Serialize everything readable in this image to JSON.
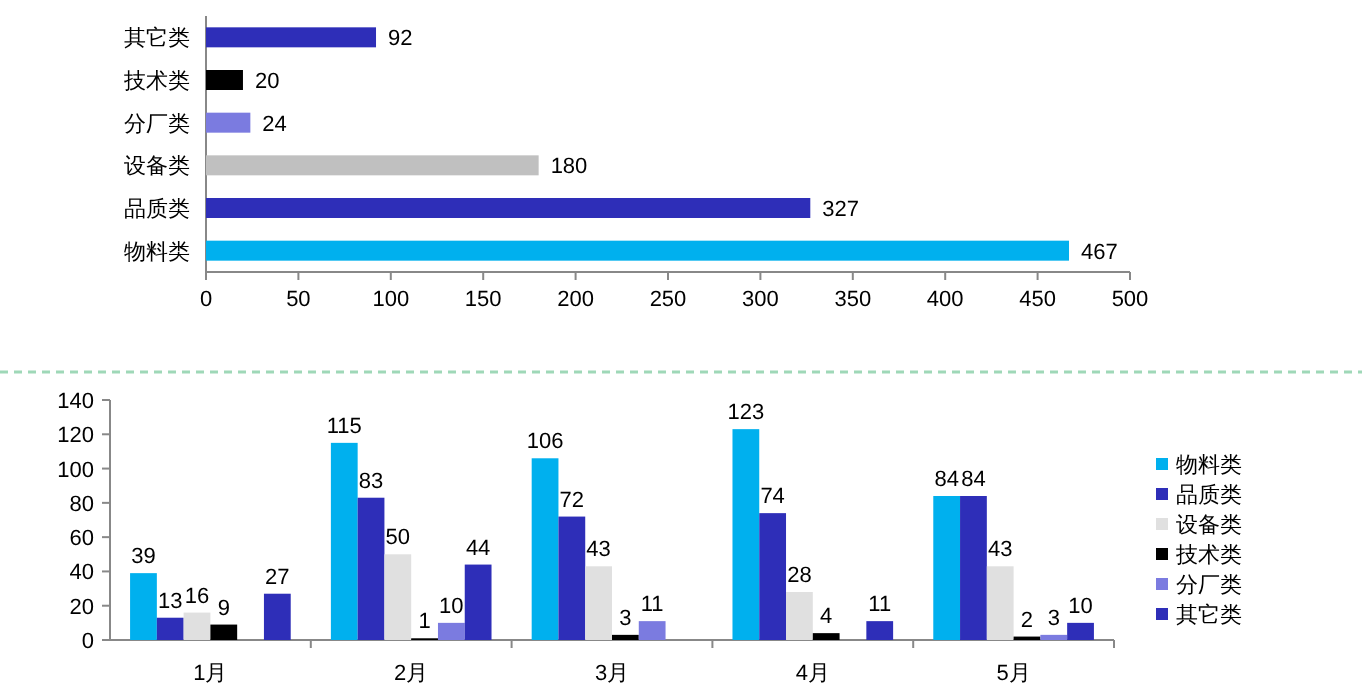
{
  "chart_data": [
    {
      "type": "bar",
      "orientation": "horizontal",
      "categories": [
        "其它类",
        "技术类",
        "分厂类",
        "设备类",
        "品质类",
        "物料类"
      ],
      "values": [
        92,
        20,
        24,
        180,
        327,
        467
      ],
      "colors": [
        "#2e2eb8",
        "#000000",
        "#7b7be0",
        "#c0c0c0",
        "#2e2eb8",
        "#00b0ee"
      ],
      "xlim": [
        0,
        500
      ],
      "xticks": [
        0,
        50,
        100,
        150,
        200,
        250,
        300,
        350,
        400,
        450,
        500
      ],
      "data_labels": true,
      "grid": false
    },
    {
      "type": "bar",
      "categories": [
        "1月",
        "2月",
        "3月",
        "4月",
        "5月"
      ],
      "series": [
        {
          "name": "物料类",
          "color": "#00b0ee",
          "values": [
            39,
            115,
            106,
            123,
            84
          ]
        },
        {
          "name": "品质类",
          "color": "#2e2eb8",
          "values": [
            13,
            83,
            72,
            74,
            84
          ]
        },
        {
          "name": "设备类",
          "color": "#e0e0e0",
          "values": [
            16,
            50,
            43,
            28,
            43
          ]
        },
        {
          "name": "技术类",
          "color": "#000000",
          "values": [
            9,
            1,
            3,
            4,
            2
          ]
        },
        {
          "name": "分厂类",
          "color": "#7b7be0",
          "values": [
            null,
            10,
            11,
            null,
            3
          ]
        },
        {
          "name": "其它类",
          "color": "#2e2eb8",
          "values": [
            27,
            44,
            null,
            11,
            10
          ]
        }
      ],
      "ylim": [
        0,
        140
      ],
      "yticks": [
        0,
        20,
        40,
        60,
        80,
        100,
        120,
        140
      ],
      "data_labels": true,
      "legend": "right",
      "grid": false
    }
  ]
}
